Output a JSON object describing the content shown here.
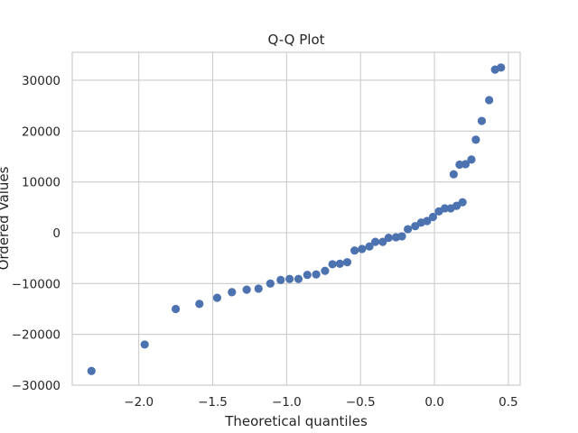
{
  "chart_data": {
    "type": "scatter",
    "title": "Q-Q Plot",
    "xlabel": "Theoretical quantiles",
    "ylabel": "Ordered Values",
    "xlim": [
      -2.45,
      0.58
    ],
    "ylim": [
      -30000,
      35500
    ],
    "xticks": [
      -2.0,
      -1.5,
      -1.0,
      -0.5,
      0.0,
      0.5
    ],
    "xtick_labels": [
      "−2.0",
      "−1.5",
      "−1.0",
      "−0.5",
      "0.0",
      "0.5"
    ],
    "yticks": [
      -30000,
      -20000,
      -10000,
      0,
      10000,
      20000,
      30000
    ],
    "ytick_labels": [
      "−30000",
      "−20000",
      "−10000",
      "0",
      "10000",
      "20000",
      "30000"
    ],
    "grid": true,
    "marker_color": "#4c72b0",
    "points": [
      {
        "x": -2.32,
        "y": -27200
      },
      {
        "x": -1.96,
        "y": -22000
      },
      {
        "x": -1.75,
        "y": -15000
      },
      {
        "x": -1.59,
        "y": -14000
      },
      {
        "x": -1.47,
        "y": -12800
      },
      {
        "x": -1.37,
        "y": -11700
      },
      {
        "x": -1.27,
        "y": -11200
      },
      {
        "x": -1.19,
        "y": -11000
      },
      {
        "x": -1.11,
        "y": -10000
      },
      {
        "x": -1.04,
        "y": -9300
      },
      {
        "x": -0.98,
        "y": -9100
      },
      {
        "x": -0.92,
        "y": -9100
      },
      {
        "x": -0.86,
        "y": -8300
      },
      {
        "x": -0.8,
        "y": -8200
      },
      {
        "x": -0.74,
        "y": -7500
      },
      {
        "x": -0.69,
        "y": -6200
      },
      {
        "x": -0.64,
        "y": -6100
      },
      {
        "x": -0.59,
        "y": -5800
      },
      {
        "x": -0.54,
        "y": -3500
      },
      {
        "x": -0.49,
        "y": -3200
      },
      {
        "x": -0.44,
        "y": -2700
      },
      {
        "x": -0.4,
        "y": -1800
      },
      {
        "x": -0.35,
        "y": -1800
      },
      {
        "x": -0.31,
        "y": -1000
      },
      {
        "x": -0.26,
        "y": -900
      },
      {
        "x": -0.22,
        "y": -700
      },
      {
        "x": -0.18,
        "y": 700
      },
      {
        "x": -0.13,
        "y": 1300
      },
      {
        "x": -0.09,
        "y": 2000
      },
      {
        "x": -0.05,
        "y": 2300
      },
      {
        "x": -0.01,
        "y": 3100
      },
      {
        "x": 0.03,
        "y": 4200
      },
      {
        "x": 0.07,
        "y": 4800
      },
      {
        "x": 0.11,
        "y": 4800
      },
      {
        "x": 0.15,
        "y": 5300
      },
      {
        "x": 0.19,
        "y": 6000
      },
      {
        "x": 0.13,
        "y": 11500
      },
      {
        "x": 0.17,
        "y": 13400
      },
      {
        "x": 0.21,
        "y": 13500
      },
      {
        "x": 0.25,
        "y": 14400
      },
      {
        "x": 0.28,
        "y": 18300
      },
      {
        "x": 0.32,
        "y": 22000
      },
      {
        "x": 0.37,
        "y": 26100
      },
      {
        "x": 0.41,
        "y": 32100
      },
      {
        "x": 0.45,
        "y": 32500
      }
    ]
  }
}
